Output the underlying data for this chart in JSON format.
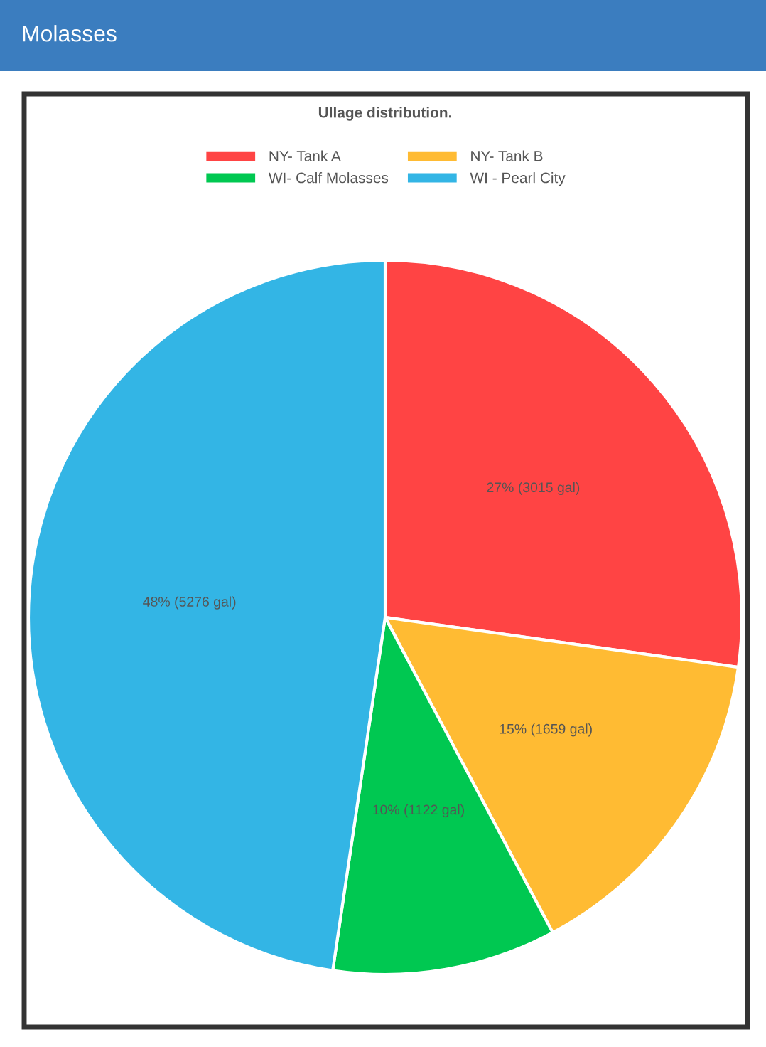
{
  "chart_data": {
    "type": "pie",
    "title": "Molasses",
    "subtitle": "Ullage distribution.",
    "categories": [
      "NY- Tank A",
      "NY- Tank B",
      "WI- Calf Molasses",
      "WI - Pearl City"
    ],
    "values": [
      3015,
      1659,
      1122,
      5276
    ],
    "value_labels": [
      "27% (3015 gal)",
      "15% (1659 gal)",
      "10% (1122 gal)",
      "48% (5276 gal)"
    ],
    "colors": [
      "#ff4444",
      "#ffbb33",
      "#00c851",
      "#33b5e5"
    ],
    "legend": "top"
  }
}
